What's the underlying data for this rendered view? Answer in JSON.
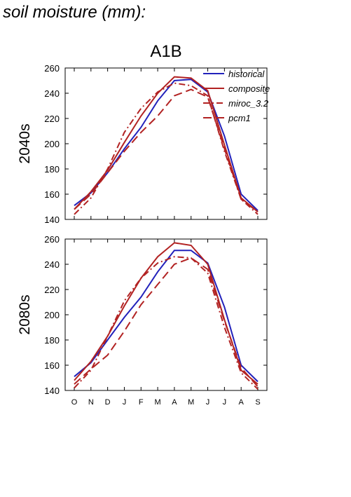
{
  "figure": {
    "title": "soil moisture (mm):",
    "column_title": "A1B"
  },
  "colors": {
    "historical": "#2222bb",
    "scenario": "#b22222",
    "axis": "#000000"
  },
  "chart_data": [
    {
      "type": "line",
      "title": "A1B",
      "row_label": "2040s",
      "categories": [
        "O",
        "N",
        "D",
        "J",
        "F",
        "M",
        "A",
        "M",
        "J",
        "J",
        "A",
        "S"
      ],
      "ylim": [
        140,
        260
      ],
      "yticks": [
        140,
        160,
        180,
        200,
        220,
        240,
        260
      ],
      "grid": false,
      "legend_position": "top-right",
      "series": [
        {
          "name": "historical",
          "style": "solid",
          "color": "#2222bb",
          "values": [
            151,
            161,
            177,
            196,
            213,
            234,
            250,
            251,
            241,
            206,
            160,
            147
          ]
        },
        {
          "name": "composite",
          "style": "solid",
          "color": "#b22222",
          "values": [
            148,
            162,
            179,
            201,
            222,
            240,
            253,
            252,
            242,
            199,
            157,
            146
          ]
        },
        {
          "name": "miroc_3.2",
          "style": "dashdot",
          "color": "#b22222",
          "values": [
            144,
            157,
            180,
            209,
            228,
            241,
            248,
            246,
            238,
            194,
            156,
            144
          ]
        },
        {
          "name": "pcm1",
          "style": "longdash",
          "color": "#b22222",
          "values": [
            148,
            160,
            177,
            194,
            209,
            222,
            238,
            243,
            237,
            196,
            156,
            146
          ]
        }
      ]
    },
    {
      "type": "line",
      "row_label": "2080s",
      "categories": [
        "O",
        "N",
        "D",
        "J",
        "F",
        "M",
        "A",
        "M",
        "J",
        "J",
        "A",
        "S"
      ],
      "ylim": [
        140,
        260
      ],
      "yticks": [
        140,
        160,
        180,
        200,
        220,
        240,
        260
      ],
      "grid": false,
      "series": [
        {
          "name": "historical",
          "style": "solid",
          "color": "#2222bb",
          "values": [
            151,
            162,
            180,
            198,
            214,
            234,
            251,
            251,
            241,
            206,
            160,
            147
          ]
        },
        {
          "name": "composite",
          "style": "solid",
          "color": "#b22222",
          "values": [
            148,
            163,
            183,
            207,
            229,
            246,
            257,
            255,
            240,
            196,
            156,
            145
          ]
        },
        {
          "name": "miroc_3.2",
          "style": "dashdot",
          "color": "#b22222",
          "values": [
            142,
            156,
            183,
            211,
            229,
            241,
            246,
            245,
            233,
            190,
            154,
            141
          ]
        },
        {
          "name": "pcm1",
          "style": "longdash",
          "color": "#b22222",
          "values": [
            145,
            157,
            168,
            187,
            208,
            224,
            240,
            245,
            236,
            195,
            158,
            143
          ]
        }
      ]
    }
  ]
}
